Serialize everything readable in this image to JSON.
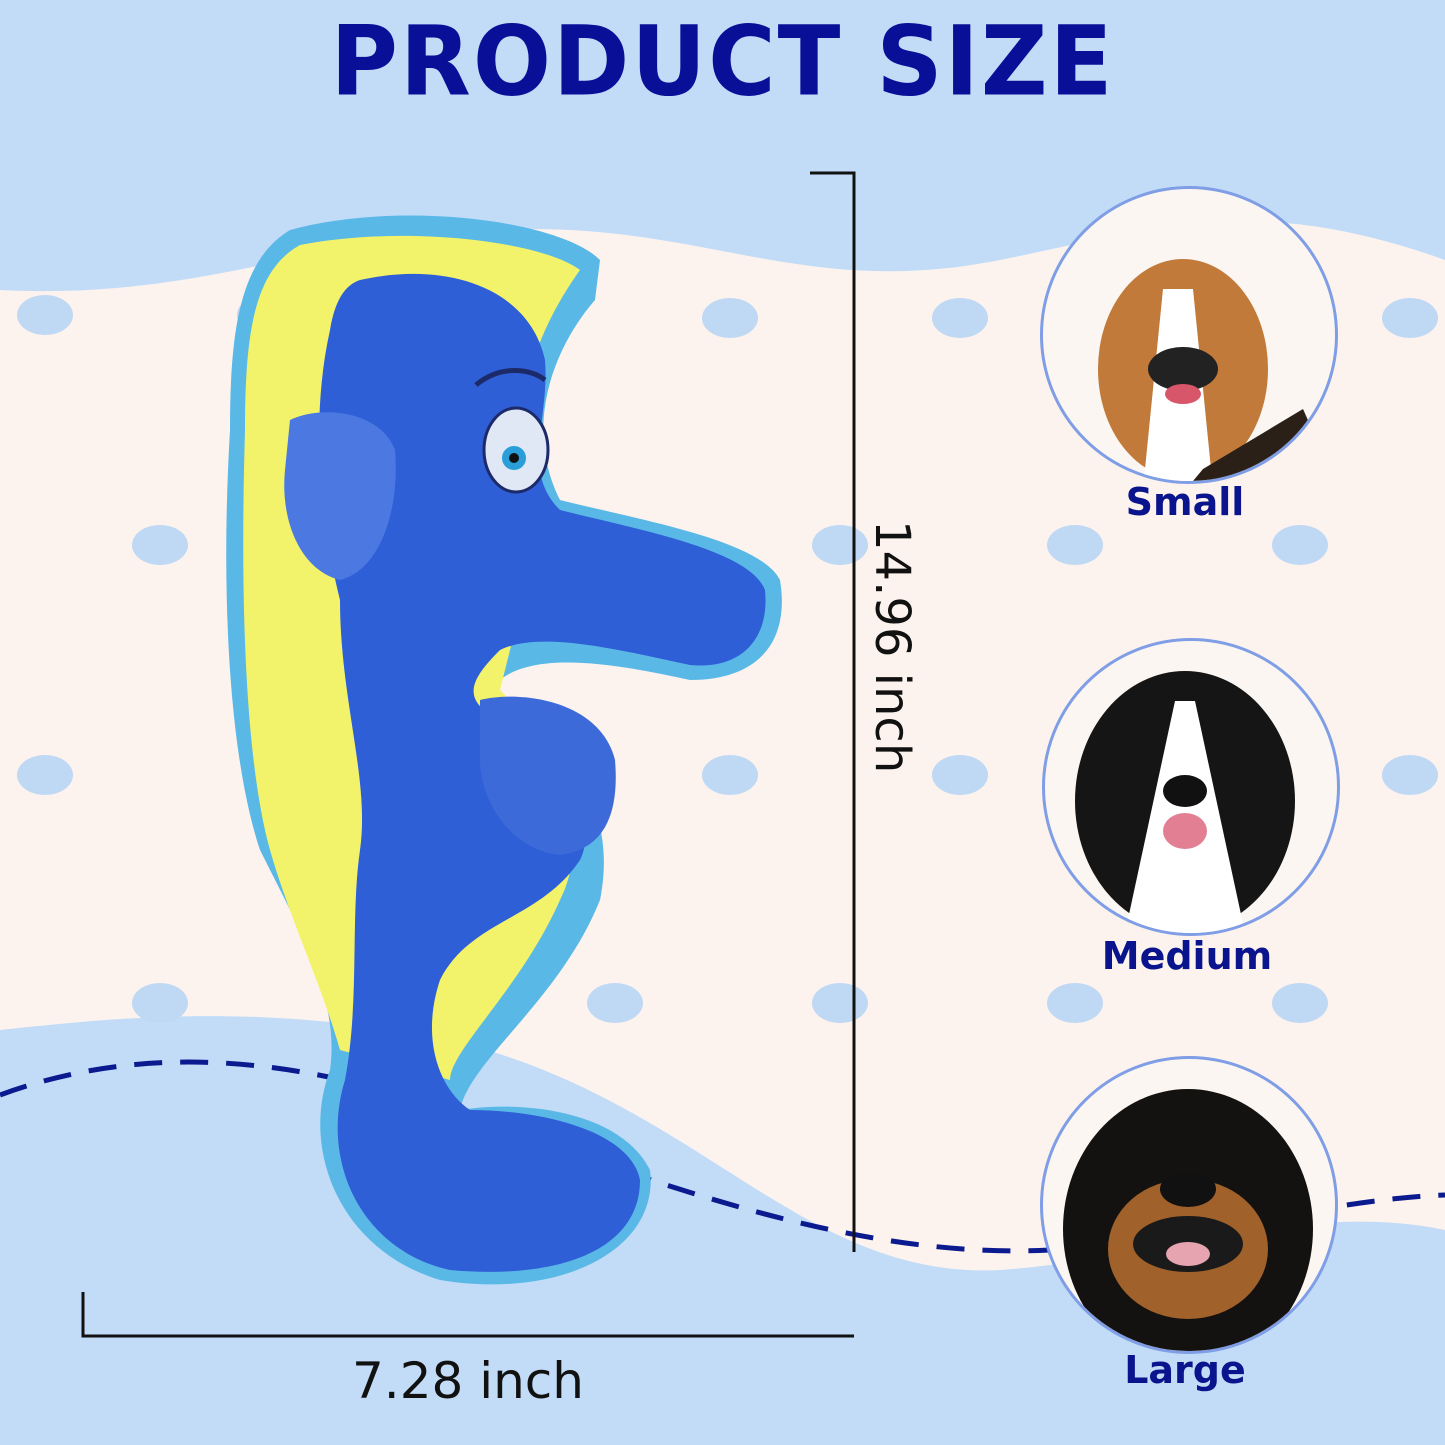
{
  "title": "PRODUCT SIZE",
  "dimensions": {
    "height": "14.96 inch",
    "width": "7.28 inch"
  },
  "dog_sizes": [
    {
      "label": "Small",
      "icon": "beagle-photo"
    },
    {
      "label": "Medium",
      "icon": "border-collie-photo"
    },
    {
      "label": "Large",
      "icon": "rottweiler-photo"
    }
  ],
  "colors": {
    "title": "#0a0f98",
    "background_blue": "#c2dcf8",
    "background_cream": "#fcf3ee",
    "toy_blue": "#2f5fd6",
    "toy_yellow": "#f2f36a",
    "toy_edge": "#5ab8e6"
  }
}
